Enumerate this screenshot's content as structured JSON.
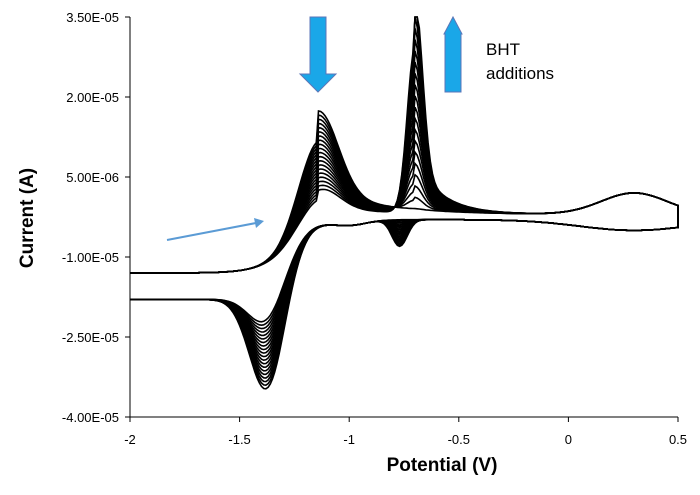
{
  "chart_data": {
    "type": "line",
    "title": "",
    "xlabel": "Potential (V)",
    "ylabel": "Current (A)",
    "xlim": [
      -2,
      0.5
    ],
    "ylim": [
      -4e-05,
      3.5e-05
    ],
    "x_ticks": [
      "-2",
      "-1.5",
      "-1",
      "-0.5",
      "0",
      "0.5"
    ],
    "y_ticks": [
      "3.50E-05",
      "2.00E-05",
      "5.00E-06",
      "-1.00E-05",
      "-2.50E-05",
      "-4.00E-05"
    ],
    "x_tick_values": [
      -2,
      -1.5,
      -1,
      -0.5,
      0,
      0.5
    ],
    "y_tick_values": [
      3.5e-05,
      2e-05,
      5e-06,
      -1e-05,
      -2.5e-05,
      -4e-05
    ],
    "grid": false,
    "legend": "none",
    "line_color": "#000000",
    "annotations": [
      {
        "text_lines": [
          "BHT",
          "additions"
        ],
        "kind": "label"
      },
      {
        "kind": "down-arrow",
        "color": "#1aa7e8",
        "at_x": -1.14
      },
      {
        "kind": "up-arrow",
        "color": "#1aa7e8",
        "at_x": -0.53
      },
      {
        "kind": "scan-direction-arrow",
        "color": "#5b9bd5"
      }
    ],
    "series_family": {
      "description": "repeated cyclic voltammograms with increasing BHT additions",
      "count": 20,
      "peak1_potential": -1.14,
      "peak1_current_first": 1.9e-05,
      "peak1_current_last": 8e-06,
      "peak2_potential": -0.7,
      "peak2_current_first": 3.1e-06,
      "peak2_current_last": 3.4e-05,
      "cathodic_peak_potential": -1.37,
      "cathodic_peak_current_min": -3.8e-05,
      "cathodic_peak_current_max": -2.5e-05,
      "reduction_peak2_potential": -0.77,
      "reduction_peak2_current": -1.1e-05
    }
  }
}
